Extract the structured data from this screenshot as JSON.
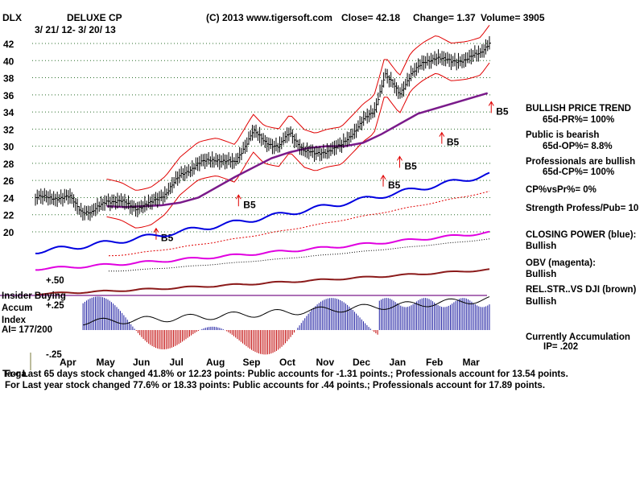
{
  "header": {
    "ticker": "DLX",
    "company": "DELUXE CP",
    "date_range": "3/ 21/ 12-  3/ 20/ 13",
    "copyright": "(C) 2013 www.tigersoft.com",
    "close": "Close=  42.18",
    "change": "Change= 1.37",
    "volume": "Volume=  3905"
  },
  "chart_data": {
    "type": "line",
    "title": "DELUXE CP",
    "ylim": [
      18,
      43
    ],
    "y_ticks": [
      20,
      22,
      24,
      26,
      28,
      30,
      32,
      34,
      36,
      38,
      40,
      42
    ],
    "months": [
      "Apr",
      "May",
      "Jun",
      "Jul",
      "Aug",
      "Sep",
      "Oct",
      "Nov",
      "Dec",
      "Jan",
      "Feb",
      "Mar"
    ],
    "price_series": {
      "name": "DLX close",
      "x_month": [
        0,
        0.3,
        0.6,
        1.0,
        1.4,
        1.8,
        2.2,
        2.6,
        3.0,
        3.5,
        4.0,
        4.5,
        5.0,
        5.3,
        5.7,
        6.0,
        6.4,
        6.7,
        7.0,
        7.4,
        7.8,
        8.0,
        8.3,
        8.6,
        9.0,
        9.3,
        9.6,
        10.0,
        10.4,
        10.8,
        11.2,
        11.45
      ],
      "values": [
        24.0,
        22.5,
        22.2,
        23.7,
        23.5,
        22.8,
        23.3,
        24.5,
        26.5,
        28.0,
        28.5,
        28.0,
        31.8,
        30.5,
        30.0,
        31.5,
        29.5,
        29.0,
        29.5,
        30.0,
        32.0,
        33.0,
        34.0,
        38.5,
        36.0,
        38.5,
        39.5,
        40.5,
        39.8,
        40.2,
        40.8,
        42.2
      ]
    },
    "ma_values": [
      23.0,
      22.9,
      23.0,
      23.1,
      23.4,
      24.0,
      25.2,
      26.4,
      27.5,
      28.6,
      29.3,
      29.8,
      30.0,
      30.0,
      30.4,
      31.4,
      33.8,
      36.2
    ],
    "ma_x_month": [
      1.0,
      1.5,
      2.0,
      2.5,
      3.0,
      3.5,
      4.0,
      4.5,
      5.0,
      5.5,
      6.0,
      6.5,
      7.0,
      7.5,
      8.0,
      8.5,
      9.5,
      11.4
    ],
    "b5_signals": [
      "B5",
      "B5",
      "B5",
      "B5",
      "B5",
      "B5"
    ],
    "indicators": {
      "closing_power": "CLOSING POWER (blue):",
      "obv": "OBV (magenta):",
      "rel_str": "REL.STR..VS DJI (brown)"
    },
    "accum_ticks": [
      "+.50",
      "+.25",
      "-.25"
    ]
  },
  "side_panel": {
    "trend_title": "BULLISH PRICE TREND",
    "pr": "65d-PR%= 100%",
    "public_label": "Public is bearish",
    "op": "65d-OP%= 8.8%",
    "prof_label": "Professionals are bullish",
    "cp": "65d-CP%= 100%",
    "cpvspr": "CP%vsPr%=  0%",
    "strength": "Strength Profess/Pub= 10",
    "closing_power": "CLOSING POWER (blue):",
    "closing_power_val": "Bullish",
    "obv": "OBV (magenta):",
    "obv_val": "Bullish",
    "rel_str": "REL.STR..VS DJI (brown)",
    "rel_str_val": "Bullish",
    "accum_title": "Currently Accumulation",
    "ip": "IP=  .202"
  },
  "inside_labels": {
    "l1": "Insider Buying",
    "l2": "Accum",
    "l3": "Index",
    "l4": "AI= 177/200"
  },
  "footer": {
    "line1": "For Last 65 days stock changed  41.8% or  12.23 points:  Public accounts for -1.31 points.;  Professionals account for  13.54 points.",
    "line1_overlap": "Ta-ga",
    "line2": "For Last year stock changed  77.6% or  18.33 points:  Public accounts for  .44 points.;  Professionals account for  17.89 points."
  },
  "colors": {
    "price_bars": "#000000",
    "bands": "#e00000",
    "ma": "#7a1a8a",
    "closing_power": "#0000e0",
    "obv": "#e000e0",
    "rel_str": "#8b1a1a",
    "accum_pos": "#1a1aa0",
    "accum_neg": "#c00000",
    "grid": "#2a6e2a"
  }
}
